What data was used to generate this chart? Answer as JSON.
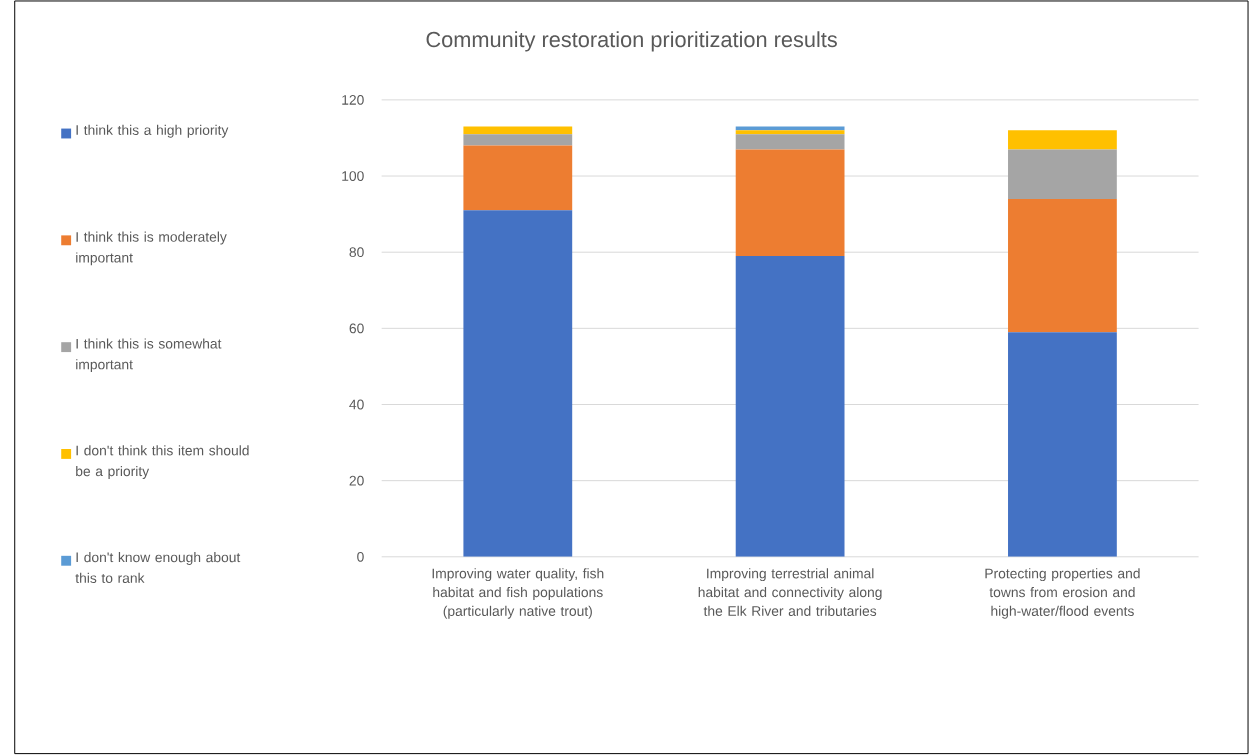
{
  "chart_data": {
    "type": "bar",
    "stacked": true,
    "title": "Community restoration prioritization results",
    "categories": [
      "Improving water quality, fish habitat and fish populations (particularly native trout)",
      "Improving terrestrial animal habitat and connectivity along the Elk River and tributaries",
      "Protecting properties and towns from erosion and high-water/flood events"
    ],
    "series": [
      {
        "name": "I think this a high priority",
        "color": "#4472c4",
        "values": [
          91,
          79,
          59
        ]
      },
      {
        "name": "I think this is moderately important",
        "color": "#ed7d31",
        "values": [
          17,
          28,
          35
        ]
      },
      {
        "name": "I think this is somewhat important",
        "color": "#a5a5a5",
        "values": [
          3,
          4,
          13
        ]
      },
      {
        "name": "I don't think this item should be a priority",
        "color": "#ffc000",
        "values": [
          2,
          1,
          5
        ]
      },
      {
        "name": "I don't know enough about this to rank",
        "color": "#5b9bd5",
        "values": [
          0,
          1,
          0
        ]
      }
    ],
    "ylim": [
      0,
      120
    ],
    "yticks": [
      0,
      20,
      40,
      60,
      80,
      100,
      120
    ],
    "grid": "y",
    "legend": "left"
  }
}
